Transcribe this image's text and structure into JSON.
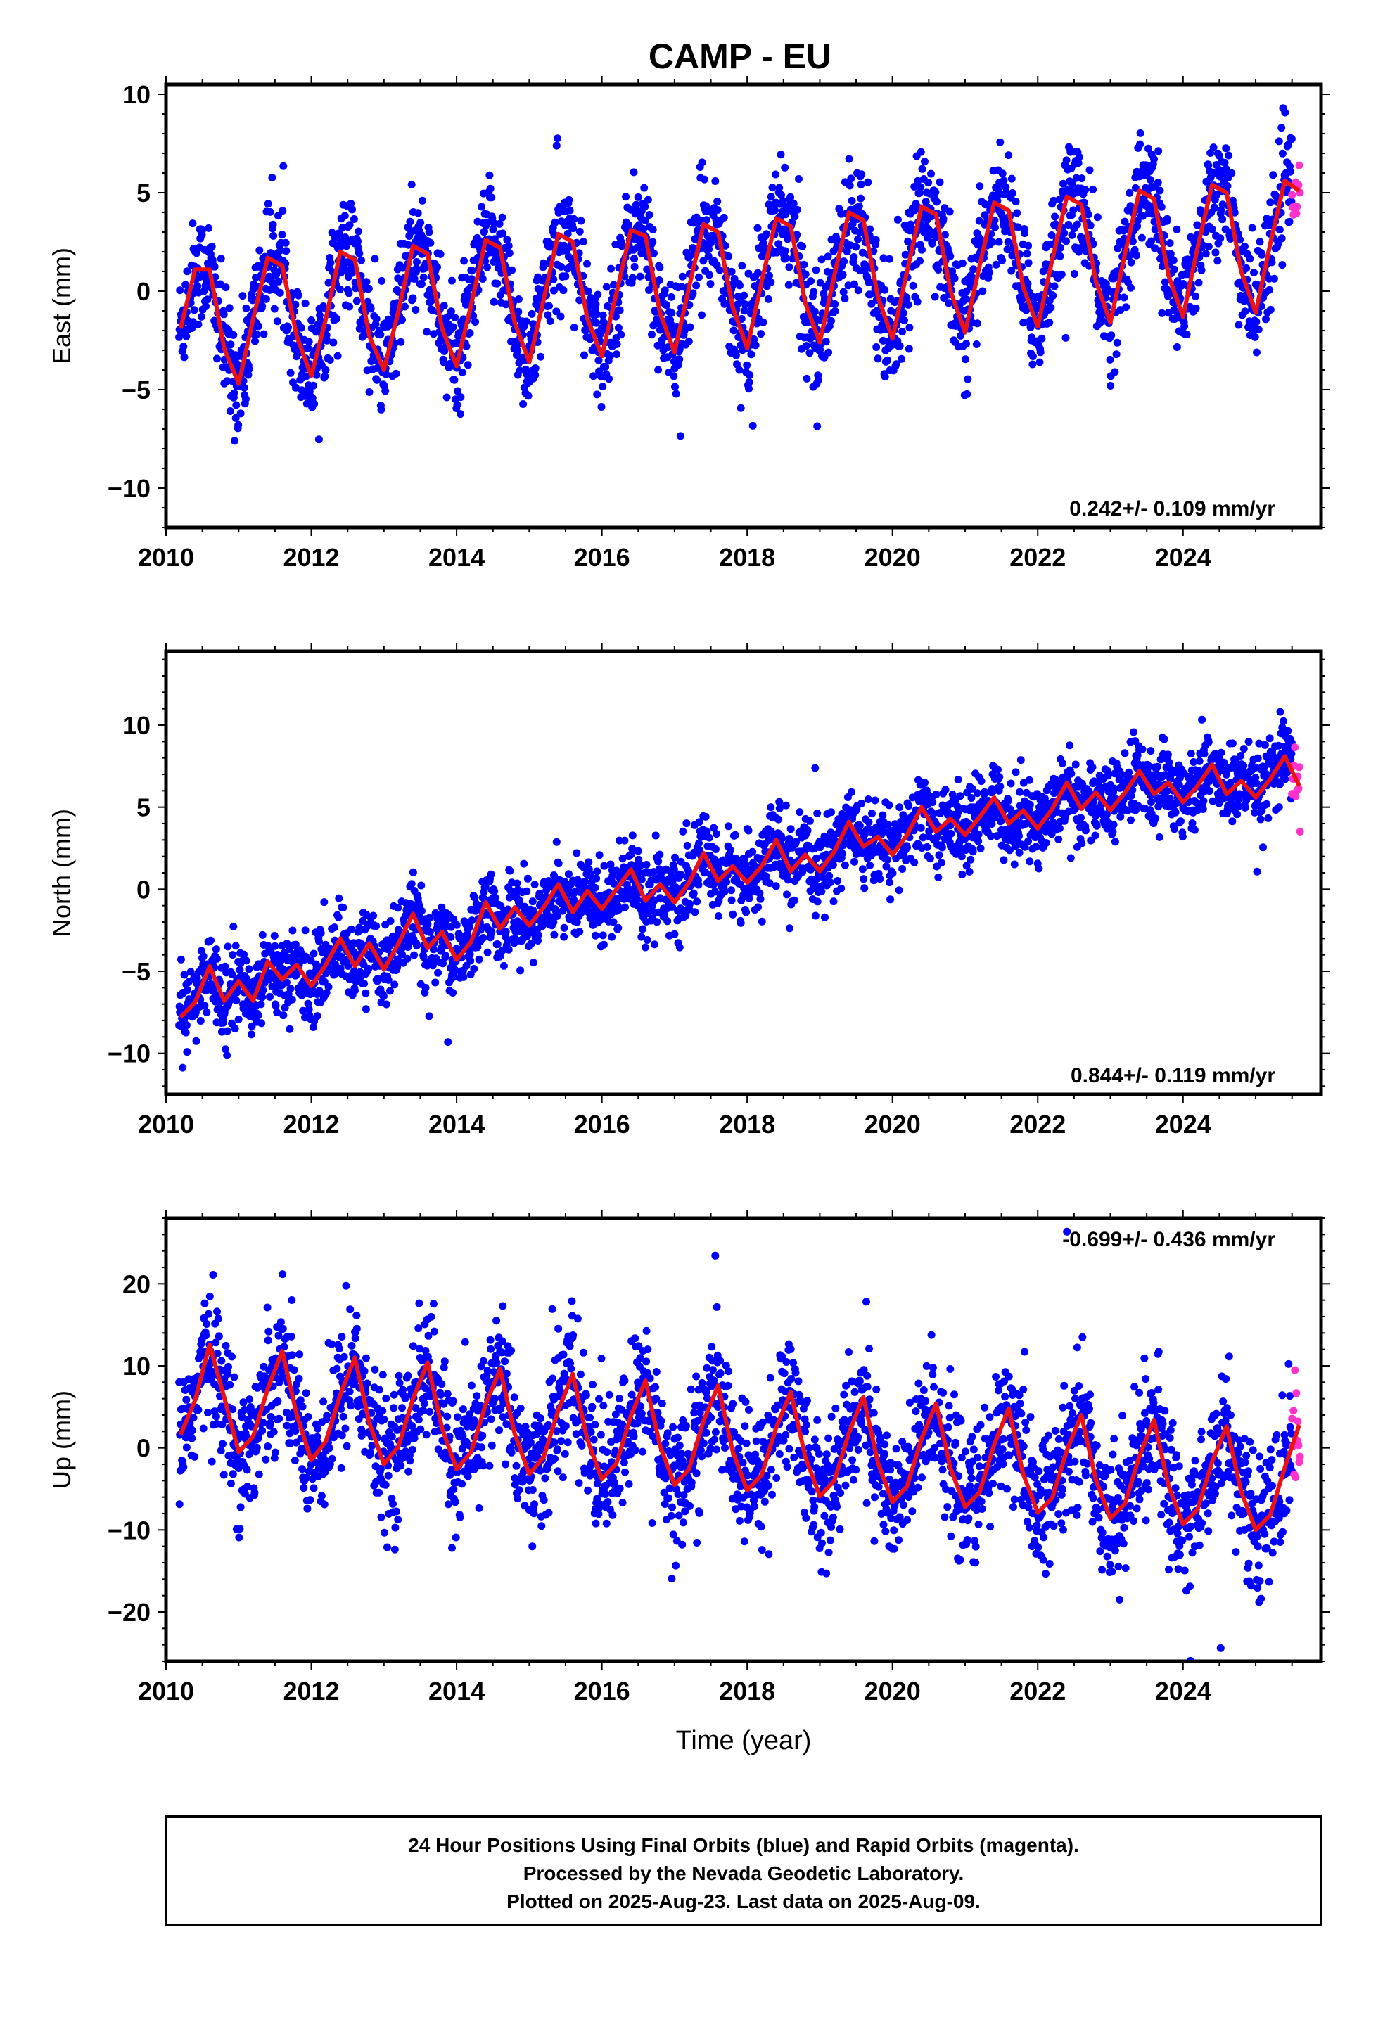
{
  "title": "CAMP - EU",
  "footer": {
    "lines": [
      "24 Hour Positions Using Final Orbits (blue) and Rapid Orbits (magenta).",
      "Processed by the Nevada Geodetic Laboratory.",
      "Plotted on 2025-Aug-23. Last data on 2025-Aug-09."
    ]
  },
  "colors": {
    "final_orbits": "#0000ff",
    "rapid_orbits": "#ff33cc",
    "model_fit": "#ee1111"
  },
  "chart_data": [
    {
      "type": "scatter",
      "ylabel": "East (mm)",
      "xlabel": "",
      "xlim": [
        2010.0,
        2025.9
      ],
      "ylim": [
        -12,
        10.5
      ],
      "xticks": [
        2010,
        2012,
        2014,
        2016,
        2018,
        2020,
        2022,
        2024
      ],
      "yticks": [
        -10,
        -5,
        0,
        5,
        10
      ],
      "grid": false,
      "rate_label": "0.242+/- 0.109 mm/yr",
      "rate_position": "bottom-right",
      "data_span": [
        2010.18,
        2025.61
      ],
      "rapid_span": [
        2025.5,
        2025.61
      ],
      "model": {
        "x": [
          2010.2,
          2010.4,
          2010.6,
          2010.8,
          2011.0,
          2011.2,
          2011.4,
          2011.6,
          2011.8,
          2012.0,
          2012.2,
          2012.4,
          2012.6,
          2012.8,
          2013.0,
          2013.2,
          2013.4,
          2013.6,
          2013.8,
          2014.0,
          2014.2,
          2014.4,
          2014.6,
          2014.8,
          2015.0,
          2015.2,
          2015.4,
          2015.6,
          2015.8,
          2016.0,
          2016.2,
          2016.4,
          2016.6,
          2016.8,
          2017.0,
          2017.2,
          2017.4,
          2017.6,
          2017.8,
          2018.0,
          2018.2,
          2018.4,
          2018.6,
          2018.8,
          2019.0,
          2019.2,
          2019.4,
          2019.6,
          2019.8,
          2020.0,
          2020.2,
          2020.4,
          2020.6,
          2020.8,
          2021.0,
          2021.2,
          2021.4,
          2021.6,
          2021.8,
          2022.0,
          2022.2,
          2022.4,
          2022.6,
          2022.8,
          2023.0,
          2023.2,
          2023.4,
          2023.6,
          2023.8,
          2024.0,
          2024.2,
          2024.4,
          2024.6,
          2024.8,
          2025.0,
          2025.2,
          2025.4,
          2025.6
        ],
        "y": [
          -1.9,
          1.1,
          1.1,
          -2.9,
          -4.7,
          -1.4,
          1.7,
          1.3,
          -2.3,
          -4.3,
          -1.4,
          2.0,
          1.6,
          -2.3,
          -4.0,
          -1.0,
          2.3,
          1.9,
          -1.9,
          -3.8,
          -0.7,
          2.6,
          2.2,
          -1.6,
          -3.6,
          -0.4,
          2.9,
          2.5,
          -1.4,
          -3.3,
          -0.1,
          3.1,
          2.8,
          -1.1,
          -3.1,
          0.2,
          3.4,
          3.0,
          -0.8,
          -2.9,
          0.5,
          3.7,
          3.3,
          -0.6,
          -2.6,
          0.8,
          4.0,
          3.6,
          -0.3,
          -2.4,
          1.0,
          4.3,
          3.9,
          0.0,
          -2.1,
          1.3,
          4.5,
          4.1,
          0.2,
          -1.8,
          1.6,
          4.8,
          4.4,
          0.5,
          -1.6,
          1.9,
          5.1,
          4.7,
          0.8,
          -1.3,
          2.2,
          5.4,
          5.0,
          1.0,
          -1.1,
          2.4,
          5.6,
          5.1
        ]
      },
      "noise_sd": 1.4
    },
    {
      "type": "scatter",
      "ylabel": "North (mm)",
      "xlabel": "",
      "xlim": [
        2010.0,
        2025.9
      ],
      "ylim": [
        -12.5,
        14.5
      ],
      "xticks": [
        2010,
        2012,
        2014,
        2016,
        2018,
        2020,
        2022,
        2024
      ],
      "yticks": [
        -10,
        -5,
        0,
        5,
        10
      ],
      "grid": false,
      "rate_label": "0.844+/- 0.119 mm/yr",
      "rate_position": "bottom-right",
      "data_span": [
        2010.18,
        2025.61
      ],
      "rapid_span": [
        2025.5,
        2025.61
      ],
      "model": {
        "x": [
          2010.2,
          2010.4,
          2010.6,
          2010.8,
          2011.0,
          2011.2,
          2011.4,
          2011.6,
          2011.8,
          2012.0,
          2012.2,
          2012.4,
          2012.6,
          2012.8,
          2013.0,
          2013.2,
          2013.4,
          2013.6,
          2013.8,
          2014.0,
          2014.2,
          2014.4,
          2014.6,
          2014.8,
          2015.0,
          2015.2,
          2015.4,
          2015.6,
          2015.8,
          2016.0,
          2016.2,
          2016.4,
          2016.6,
          2016.8,
          2017.0,
          2017.2,
          2017.4,
          2017.6,
          2017.8,
          2018.0,
          2018.2,
          2018.4,
          2018.6,
          2018.8,
          2019.0,
          2019.2,
          2019.4,
          2019.6,
          2019.8,
          2020.0,
          2020.2,
          2020.4,
          2020.6,
          2020.8,
          2021.0,
          2021.2,
          2021.4,
          2021.6,
          2021.8,
          2022.0,
          2022.2,
          2022.4,
          2022.6,
          2022.8,
          2023.0,
          2023.2,
          2023.4,
          2023.6,
          2023.8,
          2024.0,
          2024.2,
          2024.4,
          2024.6,
          2024.8,
          2025.0,
          2025.2,
          2025.4,
          2025.6
        ],
        "y": [
          -7.8,
          -6.9,
          -4.7,
          -6.8,
          -5.6,
          -6.8,
          -4.4,
          -5.5,
          -4.6,
          -5.9,
          -4.6,
          -3.0,
          -4.7,
          -3.3,
          -4.9,
          -3.3,
          -1.5,
          -3.6,
          -2.6,
          -4.3,
          -3.2,
          -0.8,
          -2.4,
          -1.1,
          -2.2,
          -1.1,
          0.3,
          -1.4,
          -0.1,
          -1.2,
          0.0,
          1.2,
          -0.7,
          0.3,
          -0.8,
          0.4,
          2.2,
          0.5,
          1.4,
          0.4,
          1.4,
          3.0,
          1.1,
          2.1,
          1.1,
          2.3,
          4.1,
          2.6,
          3.2,
          2.1,
          3.3,
          5.0,
          3.5,
          4.3,
          3.3,
          4.4,
          5.6,
          4.0,
          4.8,
          3.7,
          4.9,
          6.5,
          4.9,
          5.9,
          4.8,
          5.9,
          7.2,
          5.8,
          6.5,
          5.3,
          6.3,
          7.6,
          5.8,
          6.6,
          5.6,
          6.7,
          8.1,
          6.3
        ]
      },
      "noise_sd": 1.2
    },
    {
      "type": "scatter",
      "ylabel": "Up (mm)",
      "xlabel": "Time (year)",
      "xlim": [
        2010.0,
        2025.9
      ],
      "ylim": [
        -26,
        28
      ],
      "xticks": [
        2010,
        2012,
        2014,
        2016,
        2018,
        2020,
        2022,
        2024
      ],
      "yticks": [
        -20,
        -10,
        0,
        10,
        20
      ],
      "grid": false,
      "rate_label": "-0.699+/- 0.436 mm/yr",
      "rate_position": "top-right",
      "data_span": [
        2010.18,
        2025.61
      ],
      "rapid_span": [
        2025.5,
        2025.61
      ],
      "model": {
        "x": [
          2010.2,
          2010.4,
          2010.6,
          2010.8,
          2011.0,
          2011.2,
          2011.4,
          2011.6,
          2011.8,
          2012.0,
          2012.2,
          2012.4,
          2012.6,
          2012.8,
          2013.0,
          2013.2,
          2013.4,
          2013.6,
          2013.8,
          2014.0,
          2014.2,
          2014.4,
          2014.6,
          2014.8,
          2015.0,
          2015.2,
          2015.4,
          2015.6,
          2015.8,
          2016.0,
          2016.2,
          2016.4,
          2016.6,
          2016.8,
          2017.0,
          2017.2,
          2017.4,
          2017.6,
          2017.8,
          2018.0,
          2018.2,
          2018.4,
          2018.6,
          2018.8,
          2019.0,
          2019.2,
          2019.4,
          2019.6,
          2019.8,
          2020.0,
          2020.2,
          2020.4,
          2020.6,
          2020.8,
          2021.0,
          2021.2,
          2021.4,
          2021.6,
          2021.8,
          2022.0,
          2022.2,
          2022.4,
          2022.6,
          2022.8,
          2023.0,
          2023.2,
          2023.4,
          2023.6,
          2023.8,
          2024.0,
          2024.2,
          2024.4,
          2024.6,
          2024.8,
          2025.0,
          2025.2,
          2025.4,
          2025.6
        ],
        "y": [
          1.6,
          5.8,
          12.6,
          6.2,
          -0.5,
          1.4,
          7.2,
          11.8,
          4.0,
          -1.5,
          0.8,
          6.5,
          11.0,
          3.0,
          -2.0,
          0.2,
          6.0,
          10.4,
          2.4,
          -2.6,
          -0.5,
          5.3,
          9.6,
          1.7,
          -3.2,
          -1.1,
          4.6,
          9.0,
          1.0,
          -3.8,
          -1.9,
          3.9,
          8.2,
          0.3,
          -4.5,
          -2.6,
          3.3,
          7.6,
          -0.4,
          -5.2,
          -3.3,
          2.5,
          6.8,
          -1.1,
          -5.9,
          -4.0,
          1.8,
          6.2,
          -1.8,
          -6.6,
          -4.7,
          1.1,
          5.4,
          -2.5,
          -7.2,
          -5.4,
          0.4,
          4.8,
          -3.2,
          -7.9,
          -6.1,
          -0.3,
          4.0,
          -3.9,
          -8.6,
          -6.8,
          -1.0,
          3.4,
          -4.6,
          -9.3,
          -7.5,
          -1.7,
          2.6,
          -5.3,
          -10.0,
          -8.2,
          -2.4,
          2.8
        ]
      },
      "noise_sd": 4.0
    }
  ]
}
